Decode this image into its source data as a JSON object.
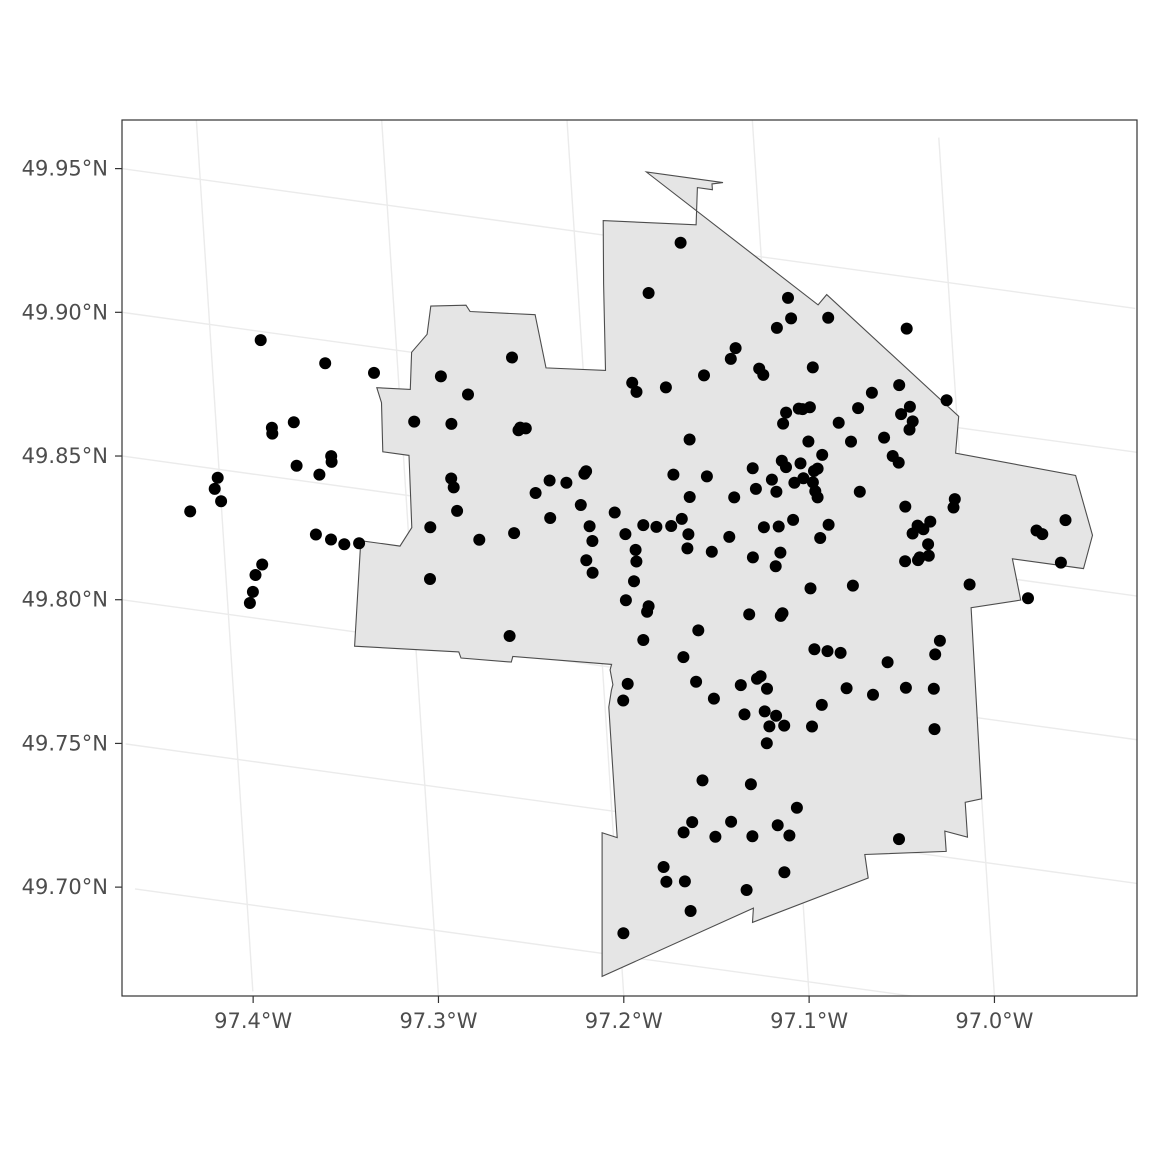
{
  "chart_data": {
    "type": "scatter",
    "title": "",
    "xlabel": "",
    "ylabel": "",
    "grid": true,
    "colors": {
      "background": "#ffffff",
      "panel_border": "#333333",
      "grid": "#ebebeb",
      "boundary_fill": "#e5e5e5",
      "boundary_stroke": "#4d4d4d",
      "points": "#000000",
      "tick_label": "#4d4d4d"
    },
    "x_ticks": [
      {
        "value": -97.4,
        "label": "97.4°W"
      },
      {
        "value": -97.3,
        "label": "97.3°W"
      },
      {
        "value": -97.2,
        "label": "97.2°W"
      },
      {
        "value": -97.1,
        "label": "97.1°W"
      },
      {
        "value": -97.0,
        "label": "97.0°W"
      }
    ],
    "y_ticks": [
      {
        "value": 49.7,
        "label": "49.70°N"
      },
      {
        "value": 49.75,
        "label": "49.75°N"
      },
      {
        "value": 49.8,
        "label": "49.80°N"
      },
      {
        "value": 49.85,
        "label": "49.85°N"
      },
      {
        "value": 49.9,
        "label": "49.90°N"
      },
      {
        "value": 49.95,
        "label": "49.95°N"
      }
    ],
    "boundary": [
      [
        -97.159,
        49.974
      ],
      [
        -97.071,
        49.936
      ],
      [
        -97.066,
        49.94
      ],
      [
        -96.999,
        49.904
      ],
      [
        -97.002,
        49.891
      ],
      [
        -96.938,
        49.889
      ],
      [
        -96.931,
        49.869
      ],
      [
        -96.937,
        49.857
      ],
      [
        -96.975,
        49.857
      ],
      [
        -96.972,
        49.843
      ],
      [
        -96.999,
        49.838
      ],
      [
        -97.0,
        49.772
      ],
      [
        -97.009,
        49.77
      ],
      [
        -97.009,
        49.758
      ],
      [
        -97.021,
        49.759
      ],
      [
        -97.021,
        49.752
      ],
      [
        -97.065,
        49.747
      ],
      [
        -97.064,
        49.739
      ],
      [
        -97.128,
        49.718
      ],
      [
        -97.127,
        49.723
      ],
      [
        -97.211,
        49.692
      ],
      [
        -97.206,
        49.742
      ],
      [
        -97.198,
        49.741
      ],
      [
        -97.198,
        49.786
      ],
      [
        -97.196,
        49.792
      ],
      [
        -97.195,
        49.794
      ],
      [
        -97.196,
        49.799
      ],
      [
        -97.195,
        49.801
      ],
      [
        -97.248,
        49.799
      ],
      [
        -97.249,
        49.797
      ],
      [
        -97.276,
        49.796
      ],
      [
        -97.277,
        49.798
      ],
      [
        -97.333,
        49.795
      ],
      [
        -97.326,
        49.832
      ],
      [
        -97.305,
        49.832
      ],
      [
        -97.298,
        49.839
      ],
      [
        -97.297,
        49.864
      ],
      [
        -97.311,
        49.864
      ],
      [
        -97.31,
        49.881
      ],
      [
        -97.312,
        49.886
      ],
      [
        -97.294,
        49.887
      ],
      [
        -97.292,
        49.9
      ],
      [
        -97.283,
        49.907
      ],
      [
        -97.28,
        49.917
      ],
      [
        -97.261,
        49.919
      ],
      [
        -97.259,
        49.917
      ],
      [
        -97.224,
        49.919
      ],
      [
        -97.22,
        49.901
      ],
      [
        -97.188,
        49.903
      ],
      [
        -97.186,
        49.933
      ],
      [
        -97.184,
        49.955
      ],
      [
        -97.134,
        49.958
      ],
      [
        -97.132,
        49.971
      ],
      [
        -97.124,
        49.971
      ],
      [
        -97.124,
        49.973
      ],
      [
        -97.118,
        49.974
      ],
      [
        -97.159,
        49.974
      ]
    ],
    "points": [
      [
        -97.143,
        49.951
      ],
      [
        -97.087,
        49.937
      ],
      [
        -97.066,
        49.932
      ],
      [
        -97.162,
        49.932
      ],
      [
        -97.024,
        49.932
      ],
      [
        -97.086,
        49.93
      ],
      [
        -97.094,
        49.926
      ],
      [
        -97.117,
        49.917
      ],
      [
        -97.076,
        49.914
      ],
      [
        -97.12,
        49.913
      ],
      [
        -97.03,
        49.912
      ],
      [
        -97.105,
        49.911
      ],
      [
        -97.103,
        49.909
      ],
      [
        -97.005,
        49.909
      ],
      [
        -97.045,
        49.908
      ],
      [
        -97.135,
        49.906
      ],
      [
        -97.238,
        49.903
      ],
      [
        -97.03,
        49.902
      ],
      [
        -97.024,
        49.9
      ],
      [
        -97.174,
        49.9
      ],
      [
        -97.156,
        49.9
      ],
      [
        -97.025,
        49.905
      ],
      [
        -97.053,
        49.902
      ],
      [
        -97.079,
        49.9
      ],
      [
        -97.083,
        49.899
      ],
      [
        -97.085,
        49.899
      ],
      [
        -97.172,
        49.897
      ],
      [
        -97.373,
        49.897
      ],
      [
        -97.026,
        49.897
      ],
      [
        -97.092,
        49.897
      ],
      [
        -97.064,
        49.896
      ],
      [
        -97.277,
        49.893
      ],
      [
        -97.094,
        49.893
      ],
      [
        -97.04,
        49.893
      ],
      [
        -97.339,
        49.892
      ],
      [
        -97.313,
        49.891
      ],
      [
        -97.058,
        49.89
      ],
      [
        -97.263,
        49.888
      ],
      [
        -97.081,
        49.888
      ],
      [
        -97.036,
        49.887
      ],
      [
        -97.033,
        49.885
      ],
      [
        -97.074,
        49.884
      ],
      [
        -97.145,
        49.883
      ],
      [
        -97.096,
        49.88
      ],
      [
        -97.236,
        49.879
      ],
      [
        -97.086,
        49.88
      ],
      [
        -97.077,
        49.879
      ],
      [
        -97.233,
        49.879
      ],
      [
        -97.094,
        49.878
      ],
      [
        -97.237,
        49.878
      ],
      [
        -97.079,
        49.878
      ],
      [
        -97.273,
        49.877
      ],
      [
        -97.112,
        49.876
      ],
      [
        -97.085,
        49.875
      ],
      [
        -97.004,
        49.875
      ],
      [
        -96.945,
        49.873
      ],
      [
        -97.09,
        49.873
      ],
      [
        -97.055,
        49.873
      ],
      [
        -97.102,
        49.873
      ],
      [
        -97.005,
        49.872
      ],
      [
        -97.293,
        49.876
      ],
      [
        -97.08,
        49.874
      ],
      [
        -97.079,
        49.871
      ],
      [
        -97.078,
        49.869
      ],
      [
        -97.358,
        49.87
      ],
      [
        -97.137,
        49.871
      ],
      [
        -97.111,
        49.869
      ],
      [
        -97.1,
        49.869
      ],
      [
        -97.031,
        49.87
      ],
      [
        -97.155,
        49.87
      ],
      [
        -97.37,
        49.867
      ],
      [
        -96.961,
        49.868
      ],
      [
        -97.37,
        49.865
      ],
      [
        -97.018,
        49.866
      ],
      [
        -96.958,
        49.867
      ],
      [
        -97.202,
        49.867
      ],
      [
        -97.203,
        49.866
      ],
      [
        -97.025,
        49.864
      ],
      [
        -97.123,
        49.865
      ],
      [
        -97.147,
        49.863
      ],
      [
        -97.073,
        49.86
      ],
      [
        -97.092,
        49.86
      ],
      [
        -97.022,
        49.863
      ],
      [
        -97.028,
        49.861
      ],
      [
        -97.222,
        49.862
      ],
      [
        -97.213,
        49.862
      ],
      [
        -97.339,
        49.86
      ],
      [
        -97.275,
        49.858
      ],
      [
        -97.339,
        49.858
      ],
      [
        -97.23,
        49.857
      ],
      [
        -97.02,
        49.858
      ],
      [
        -96.949,
        49.858
      ],
      [
        -97.1,
        49.857
      ],
      [
        -97.108,
        49.856
      ],
      [
        -97.206,
        49.855
      ],
      [
        -97.274,
        49.855
      ],
      [
        -97.358,
        49.855
      ],
      [
        -97.346,
        49.853
      ],
      [
        -97.152,
        49.855
      ],
      [
        -97.188,
        49.854
      ],
      [
        -97.078,
        49.855
      ],
      [
        -97.02,
        49.854
      ],
      [
        -97.025,
        49.853
      ],
      [
        -97.026,
        49.852
      ],
      [
        -97.033,
        49.851
      ],
      [
        -97.149,
        49.85
      ],
      [
        -97.158,
        49.852
      ],
      [
        -97.173,
        49.851
      ],
      [
        -97.166,
        49.851
      ],
      [
        -97.127,
        49.851
      ],
      [
        -97.223,
        49.849
      ],
      [
        -97.273,
        49.847
      ],
      [
        -97.202,
        49.848
      ],
      [
        -97.183,
        49.847
      ],
      [
        -97.1,
        49.848
      ],
      [
        -97.401,
        49.847
      ],
      [
        -97.115,
        49.845
      ],
      [
        -97.15,
        49.845
      ],
      [
        -97.137,
        49.845
      ],
      [
        -96.999,
        49.846
      ],
      [
        -96.968,
        49.844
      ],
      [
        -97.103,
        49.843
      ],
      [
        -97.243,
        49.842
      ],
      [
        -97.178,
        49.842
      ],
      [
        -97.201,
        49.843
      ],
      [
        -97.403,
        49.843
      ],
      [
        -97.288,
        49.84
      ],
      [
        -97.062,
        49.84
      ],
      [
        -97.262,
        49.838
      ],
      [
        -97.4,
        49.839
      ],
      [
        -97.178,
        49.838
      ],
      [
        -97.085,
        49.837
      ],
      [
        -97.205,
        49.836
      ],
      [
        -97.417,
        49.834
      ],
      [
        -97.202,
        49.832
      ],
      [
        -97.35,
        49.832
      ],
      [
        -97.327,
        49.831
      ],
      [
        -97.342,
        49.831
      ],
      [
        -97.335,
        49.83
      ],
      [
        -97.18,
        49.831
      ],
      [
        -97.017,
        49.825
      ],
      [
        -97.173,
        49.823
      ],
      [
        -97.185,
        49.824
      ],
      [
        -97.102,
        49.826
      ],
      [
        -97.101,
        49.827
      ],
      [
        -97.119,
        49.825
      ],
      [
        -97.38,
        49.819
      ],
      [
        -97.174,
        49.821
      ],
      [
        -97.29,
        49.822
      ],
      [
        -97.02,
        49.82
      ],
      [
        -97.147,
        49.817
      ],
      [
        -97.085,
        49.816
      ],
      [
        -97.078,
        49.816
      ],
      [
        -97.071,
        49.816
      ],
      [
        -97.046,
        49.815
      ],
      [
        -97.384,
        49.815
      ],
      [
        -97.177,
        49.811
      ],
      [
        -97.022,
        49.808
      ],
      [
        -97.386,
        49.809
      ],
      [
        -97.037,
        49.807
      ],
      [
        -97.156,
        49.807
      ],
      [
        -97.069,
        49.804
      ],
      [
        -97.388,
        49.805
      ],
      [
        -97.249,
        49.806
      ],
      [
        -97.115,
        49.804
      ],
      [
        -97.117,
        49.803
      ],
      [
        -97.055,
        49.803
      ],
      [
        -97.126,
        49.8
      ],
      [
        -97.112,
        49.8
      ],
      [
        -97.15,
        49.799
      ],
      [
        -97.083,
        49.797
      ],
      [
        -97.187,
        49.795
      ],
      [
        -97.141,
        49.794
      ],
      [
        -97.023,
        49.794
      ],
      [
        -97.114,
        49.792
      ],
      [
        -97.108,
        49.791
      ],
      [
        -97.125,
        49.79
      ],
      [
        -97.089,
        49.789
      ],
      [
        -97.19,
        49.789
      ],
      [
        -97.112,
        49.787
      ],
      [
        -97.104,
        49.788
      ],
      [
        -97.114,
        49.781
      ],
      [
        -97.15,
        49.765
      ],
      [
        -97.124,
        49.766
      ],
      [
        -97.1,
        49.76
      ],
      [
        -97.046,
        49.754
      ],
      [
        -97.136,
        49.752
      ],
      [
        -97.111,
        49.753
      ],
      [
        -97.157,
        49.75
      ],
      [
        -97.105,
        49.75
      ],
      [
        -97.125,
        49.748
      ],
      [
        -97.145,
        49.746
      ],
      [
        -97.162,
        49.746
      ],
      [
        -97.109,
        49.737
      ],
      [
        -97.174,
        49.733
      ],
      [
        -97.173,
        49.728
      ],
      [
        -97.163,
        49.729
      ],
      [
        -97.13,
        49.729
      ],
      [
        -97.161,
        49.719
      ],
      [
        -97.198,
        49.708
      ]
    ]
  }
}
